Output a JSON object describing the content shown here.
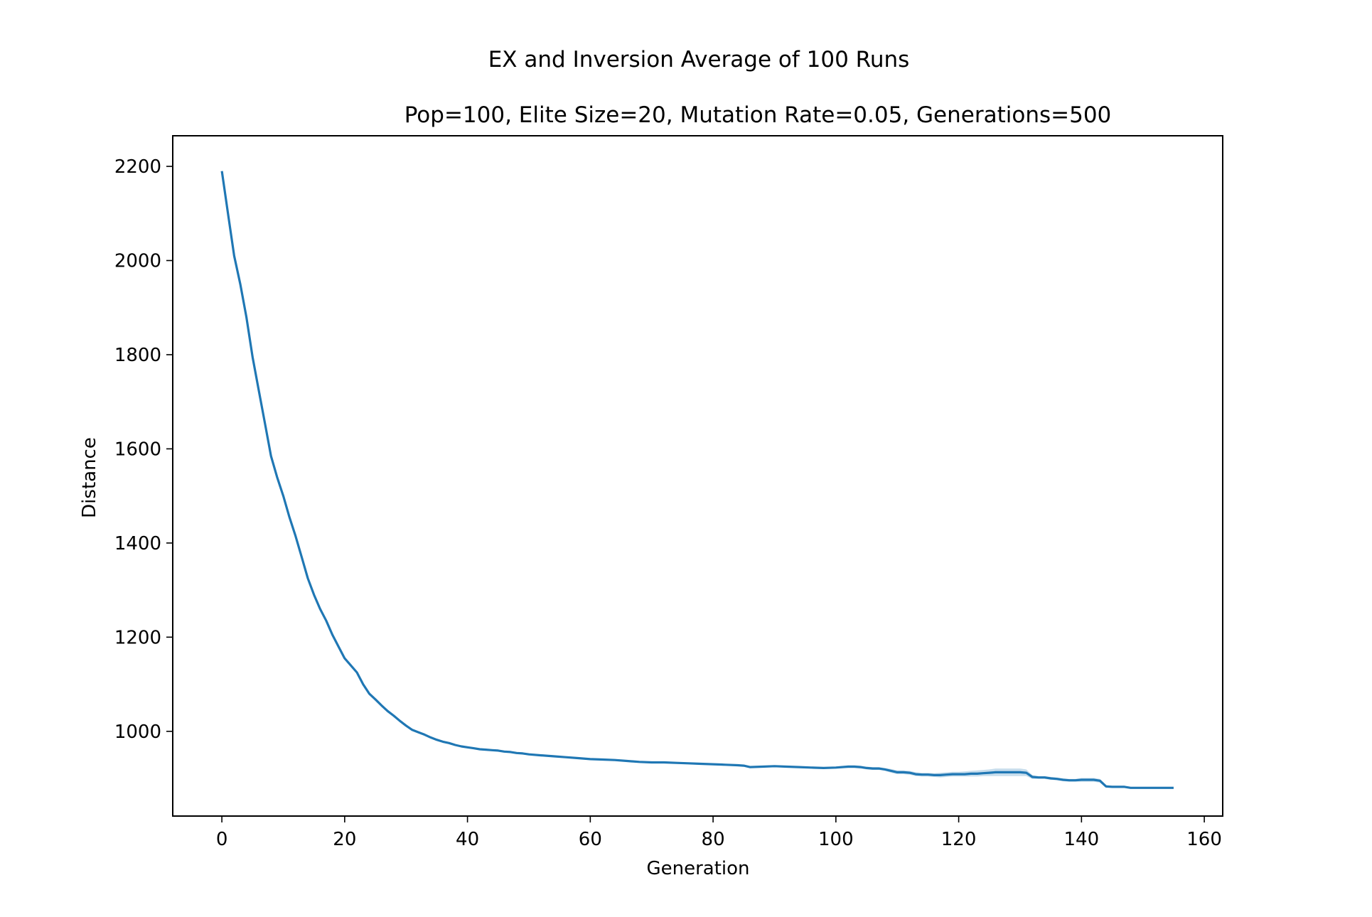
{
  "chart_data": {
    "type": "line",
    "suptitle": "EX and Inversion Average of 100 Runs",
    "title": "Pop=100, Elite Size=20, Mutation Rate=0.05, Generations=500",
    "xlabel": "Generation",
    "ylabel": "Distance",
    "xlim": [
      -8,
      163
    ],
    "ylim": [
      820,
      2265
    ],
    "xticks": [
      0,
      20,
      40,
      60,
      80,
      100,
      120,
      140,
      160
    ],
    "yticks": [
      1000,
      1200,
      1400,
      1600,
      1800,
      2000,
      2200
    ],
    "grid": false,
    "colors": {
      "line": "#1f77b4",
      "band": "#1f77b4"
    },
    "series": [
      {
        "x": [
          0,
          1,
          2,
          3,
          4,
          5,
          6,
          7,
          8,
          9,
          10,
          11,
          12,
          13,
          14,
          15,
          16,
          17,
          18,
          19,
          20,
          21,
          22,
          23,
          24,
          25,
          26,
          27,
          28,
          29,
          30,
          31,
          32,
          33,
          34,
          35,
          36,
          37,
          38,
          39,
          40,
          41,
          42,
          43,
          44,
          45,
          46,
          47,
          48,
          49,
          50,
          52,
          54,
          56,
          58,
          60,
          62,
          64,
          66,
          68,
          70,
          72,
          74,
          76,
          78,
          80,
          82,
          84,
          85,
          86,
          88,
          90,
          92,
          94,
          96,
          98,
          100,
          101,
          102,
          103,
          104,
          105,
          106,
          107,
          108,
          109,
          110,
          111,
          112,
          113,
          114,
          115,
          116,
          117,
          118,
          119,
          120,
          121,
          122,
          123,
          124,
          125,
          126,
          127,
          128,
          129,
          130,
          131,
          132,
          133,
          134,
          135,
          136,
          137,
          138,
          139,
          140,
          141,
          142,
          143,
          144,
          145,
          146,
          147,
          148,
          150,
          152,
          155
        ],
        "y": [
          2190,
          2100,
          2010,
          1950,
          1880,
          1795,
          1725,
          1655,
          1585,
          1540,
          1500,
          1455,
          1415,
          1370,
          1325,
          1290,
          1260,
          1235,
          1205,
          1180,
          1155,
          1140,
          1125,
          1100,
          1080,
          1068,
          1055,
          1043,
          1033,
          1022,
          1012,
          1003,
          998,
          993,
          987,
          982,
          978,
          975,
          971,
          968,
          966,
          964,
          962,
          961,
          960,
          959,
          957,
          956,
          954,
          953,
          951,
          949,
          947,
          945,
          943,
          941,
          940,
          939,
          937,
          935,
          934,
          934,
          933,
          932,
          931,
          930,
          929,
          928,
          927,
          924,
          925,
          926,
          925,
          924,
          923,
          922,
          923,
          924,
          925,
          925,
          924,
          922,
          921,
          921,
          919,
          916,
          913,
          913,
          912,
          909,
          908,
          908,
          907,
          907,
          908,
          909,
          909,
          909,
          910,
          910,
          911,
          912,
          913,
          913,
          913,
          913,
          913,
          912,
          903,
          902,
          902,
          900,
          899,
          897,
          896,
          896,
          897,
          897,
          897,
          895,
          883,
          882,
          882,
          882,
          880,
          880,
          880,
          880
        ],
        "lower": [
          2190,
          2100,
          2010,
          1950,
          1880,
          1795,
          1725,
          1655,
          1585,
          1540,
          1500,
          1455,
          1415,
          1370,
          1325,
          1290,
          1260,
          1235,
          1205,
          1180,
          1155,
          1140,
          1125,
          1100,
          1080,
          1068,
          1055,
          1043,
          1033,
          1022,
          1012,
          1003,
          998,
          993,
          987,
          982,
          978,
          975,
          971,
          968,
          966,
          964,
          962,
          961,
          960,
          959,
          957,
          956,
          954,
          953,
          951,
          949,
          947,
          945,
          943,
          941,
          940,
          939,
          937,
          935,
          934,
          934,
          933,
          932,
          931,
          930,
          929,
          928,
          927,
          923,
          924,
          925,
          924,
          923,
          922,
          921,
          921,
          922,
          922,
          922,
          921,
          919,
          918,
          918,
          916,
          912,
          909,
          909,
          908,
          905,
          904,
          904,
          903,
          902,
          903,
          904,
          904,
          904,
          904,
          904,
          905,
          905,
          905,
          905,
          905,
          905,
          905,
          905,
          899,
          899,
          899,
          897,
          896,
          894,
          893,
          893,
          893,
          893,
          893,
          891,
          880,
          880,
          880,
          880,
          878,
          878,
          878,
          878
        ],
        "upper": [
          2190,
          2100,
          2010,
          1950,
          1880,
          1795,
          1725,
          1655,
          1585,
          1540,
          1500,
          1455,
          1415,
          1370,
          1325,
          1290,
          1260,
          1235,
          1205,
          1180,
          1155,
          1140,
          1125,
          1100,
          1080,
          1068,
          1055,
          1043,
          1033,
          1022,
          1012,
          1003,
          998,
          993,
          987,
          982,
          978,
          975,
          971,
          968,
          966,
          964,
          962,
          961,
          960,
          959,
          957,
          956,
          954,
          953,
          951,
          949,
          947,
          945,
          943,
          941,
          940,
          939,
          937,
          935,
          934,
          934,
          933,
          932,
          931,
          930,
          929,
          928,
          927,
          925,
          926,
          927,
          926,
          925,
          924,
          923,
          925,
          926,
          928,
          928,
          927,
          925,
          924,
          924,
          922,
          920,
          917,
          917,
          916,
          913,
          912,
          912,
          911,
          912,
          913,
          914,
          914,
          915,
          916,
          917,
          918,
          919,
          921,
          921,
          921,
          921,
          921,
          919,
          907,
          905,
          905,
          903,
          902,
          900,
          899,
          899,
          901,
          901,
          901,
          899,
          886,
          884,
          884,
          884,
          882,
          882,
          882,
          882
        ]
      }
    ]
  }
}
